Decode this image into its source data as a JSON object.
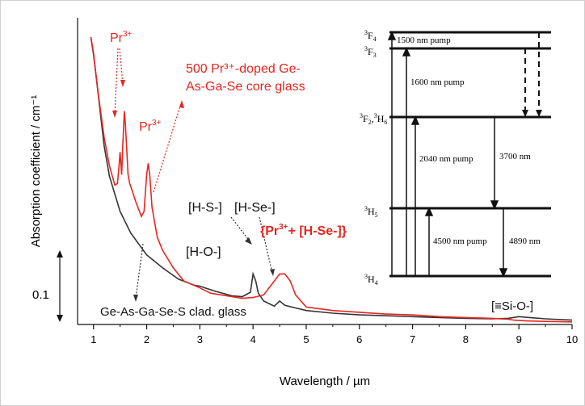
{
  "chart_data": {
    "type": "line",
    "xlabel": "Wavelength / µm",
    "ylabel": "Absorption coefficient / cm⁻¹",
    "xlim": [
      0.7,
      10
    ],
    "xticks": [
      1,
      2,
      3,
      4,
      5,
      6,
      7,
      8,
      9,
      10
    ],
    "scale_bar_label": "0.1",
    "series": [
      {
        "name": "500 Pr³⁺-doped Ge-As-Ga-Se core glass",
        "color": "#e8251f",
        "x": [
          0.95,
          1.0,
          1.05,
          1.1,
          1.2,
          1.3,
          1.4,
          1.45,
          1.48,
          1.5,
          1.53,
          1.55,
          1.58,
          1.6,
          1.63,
          1.65,
          1.68,
          1.72,
          1.8,
          1.9,
          1.95,
          2.0,
          2.03,
          2.06,
          2.1,
          2.2,
          2.3,
          2.5,
          2.7,
          3.0,
          3.2,
          3.5,
          3.8,
          4.0,
          4.2,
          4.4,
          4.5,
          4.6,
          4.7,
          4.8,
          5.0,
          5.5,
          6.0,
          6.5,
          7.0,
          7.5,
          8.0,
          8.5,
          8.8,
          8.9,
          9.0,
          9.2,
          9.5,
          10.0
        ],
        "y": [
          3.3,
          3.12,
          2.85,
          2.6,
          2.15,
          1.82,
          1.6,
          1.62,
          1.82,
          1.98,
          1.72,
          2.05,
          2.45,
          2.3,
          1.95,
          1.72,
          1.62,
          1.55,
          1.4,
          1.24,
          1.3,
          1.72,
          1.85,
          1.7,
          1.35,
          1.0,
          0.85,
          0.65,
          0.5,
          0.42,
          0.36,
          0.33,
          0.3,
          0.31,
          0.34,
          0.5,
          0.58,
          0.58,
          0.5,
          0.34,
          0.2,
          0.16,
          0.14,
          0.12,
          0.11,
          0.09,
          0.08,
          0.07,
          0.06,
          0.05,
          0.045,
          0.04,
          0.035,
          0.03
        ]
      },
      {
        "name": "Ge-As-Ga-Se-S clad. glass",
        "color": "#333333",
        "x": [
          0.95,
          1.0,
          1.05,
          1.1,
          1.2,
          1.3,
          1.5,
          1.7,
          2.0,
          2.3,
          2.6,
          2.9,
          3.0,
          3.1,
          3.3,
          3.6,
          3.8,
          3.95,
          4.0,
          4.05,
          4.1,
          4.2,
          4.3,
          4.4,
          4.45,
          4.5,
          4.6,
          4.8,
          5.0,
          5.5,
          6.0,
          6.5,
          7.0,
          7.5,
          8.0,
          8.5,
          8.8,
          9.0,
          9.2,
          9.5,
          10.0
        ],
        "y": [
          3.3,
          3.1,
          2.85,
          2.58,
          2.05,
          1.7,
          1.3,
          1.05,
          0.8,
          0.65,
          0.52,
          0.45,
          0.44,
          0.42,
          0.38,
          0.33,
          0.32,
          0.37,
          0.58,
          0.5,
          0.36,
          0.27,
          0.24,
          0.21,
          0.24,
          0.27,
          0.22,
          0.19,
          0.16,
          0.13,
          0.11,
          0.1,
          0.09,
          0.08,
          0.07,
          0.065,
          0.07,
          0.09,
          0.08,
          0.065,
          0.05
        ]
      }
    ],
    "annotations": {
      "pr_left": "Pr",
      "pr_mid": "Pr",
      "sup": "3+",
      "core_glass_line1": "500 Pr³⁺-doped Ge-",
      "core_glass_line2": "As-Ga-Se core glass",
      "hs": "[H-S-]",
      "hse": "[H-Se-]",
      "ho": "[H-O-]",
      "pr_hse_1": "{Pr",
      "pr_hse_2": "+ [H-Se-]}",
      "clad_glass": "Ge-As-Ga-Se-S clad. glass",
      "sio": "[≡Si-O-]"
    },
    "energy_levels": {
      "levels": [
        {
          "main": "F",
          "sup": "3",
          "sub": "4"
        },
        {
          "main": "F",
          "sup": "3",
          "sub": "3"
        },
        {
          "main": "F",
          "sup": "3",
          "sub": "2",
          "extra_main": "H",
          "extra_sup": "3",
          "extra_sub": "6"
        },
        {
          "main": "H",
          "sup": "3",
          "sub": "5"
        },
        {
          "main": "H",
          "sup": "3",
          "sub": "4"
        }
      ],
      "transitions": [
        "1500  nm pump",
        "1600  nm pump",
        "2040 nm pump",
        "3700 nm",
        "4500 nm pump",
        "4890 nm"
      ]
    }
  }
}
